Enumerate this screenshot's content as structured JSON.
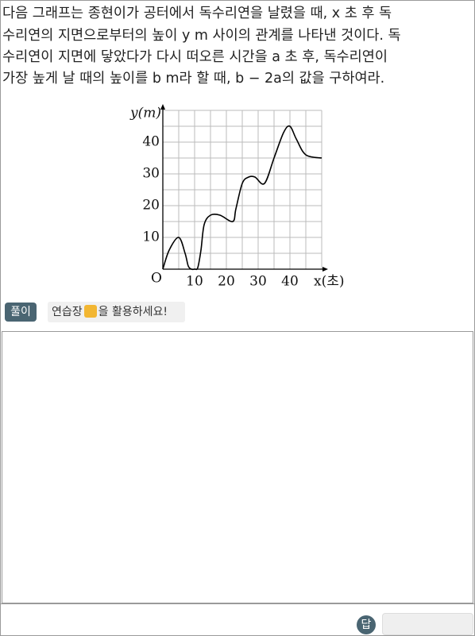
{
  "problem": {
    "lines": [
      "다음 그래프는 종현이가 공터에서 독수리연을 날렸을 때, x 초 후 독",
      "수리연의 지면으로부터의 높이 y m 사이의 관계를 나타낸 것이다. 독",
      "수리연이 지면에 닿았다가 다시 떠오른 시간을 a 초 후, 독수리연이",
      "가장 높게 날 때의 높이를 b m라 할 때, b − 2a의 값을 구하여라."
    ]
  },
  "chart_data": {
    "type": "line",
    "ylabel": "y(m)",
    "xlabel": "x(초)",
    "x": [
      0,
      2,
      5,
      7,
      8,
      9,
      10,
      11,
      12,
      13,
      15,
      18,
      22,
      23,
      25,
      27,
      29,
      32,
      35,
      38,
      40,
      42,
      45,
      50
    ],
    "series": [
      {
        "color": "#000000",
        "values": [
          0,
          6,
          10,
          5,
          1,
          0,
          0,
          0.5,
          6,
          14,
          17,
          17,
          15,
          19,
          27,
          29,
          29,
          27,
          35,
          43,
          45,
          41,
          36,
          35
        ]
      }
    ],
    "xlim": [
      0,
      50
    ],
    "ylim": [
      0,
      50
    ],
    "xticks": [
      {
        "value": 0,
        "label": "O"
      },
      10,
      20,
      30,
      40
    ],
    "yticks": [
      10,
      20,
      30,
      40
    ],
    "xgrid": [
      5,
      10,
      15,
      20,
      25,
      30,
      35,
      40,
      45,
      50
    ],
    "ygrid": [
      5,
      10,
      15,
      20,
      25,
      30,
      35,
      40,
      45,
      50
    ]
  },
  "solution": {
    "badge": "풀이",
    "pad": "연습장",
    "hint": "을 활용하세요!"
  },
  "answer": {
    "badge": "답"
  }
}
